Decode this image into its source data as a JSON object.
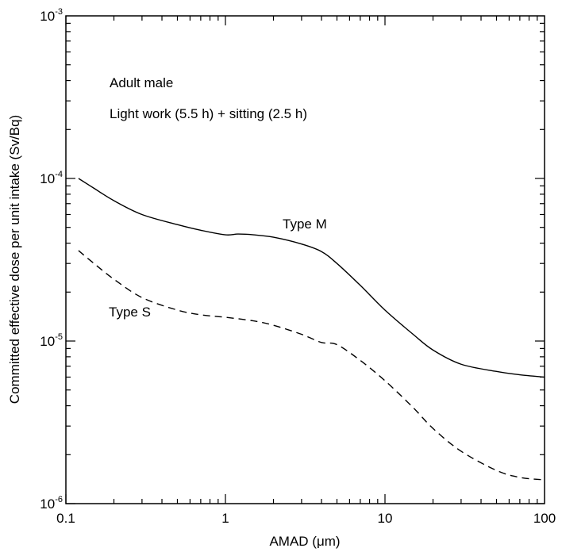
{
  "chart_data": {
    "type": "line",
    "xlabel": "AMAD (μm)",
    "ylabel": "Committed effective dose per unit intake (Sv/Bq)",
    "x_scale": "log",
    "y_scale": "log",
    "xlim": [
      0.1,
      100
    ],
    "ylim": [
      1e-06,
      0.001
    ],
    "x_tick_labels": [
      "0.1",
      "1",
      "10",
      "100"
    ],
    "y_tick_labels": [
      {
        "value": 0.001,
        "base": "10",
        "exp": "-3"
      },
      {
        "value": 0.0001,
        "base": "10",
        "exp": "-4"
      },
      {
        "value": 1e-05,
        "base": "10",
        "exp": "-5"
      },
      {
        "value": 1e-06,
        "base": "10",
        "exp": "-6"
      }
    ],
    "grid": false,
    "annotations": [
      "Adult male",
      "Light work (5.5 h) + sitting (2.5 h)"
    ],
    "series": [
      {
        "name": "Type M",
        "style": "solid",
        "x": [
          0.12,
          0.15,
          0.2,
          0.3,
          0.5,
          0.7,
          1.0,
          1.2,
          1.5,
          2.0,
          3.0,
          4.0,
          5.0,
          7.0,
          10.0,
          15.0,
          20.0,
          30.0,
          50.0,
          70.0,
          100.0
        ],
        "y": [
          0.0001,
          8.7e-05,
          7.3e-05,
          6e-05,
          5.2e-05,
          4.8e-05,
          4.5e-05,
          4.55e-05,
          4.5e-05,
          4.35e-05,
          3.95e-05,
          3.55e-05,
          3e-05,
          2.2e-05,
          1.55e-05,
          1.1e-05,
          8.8e-06,
          7.2e-06,
          6.5e-06,
          6.2e-06,
          6e-06
        ]
      },
      {
        "name": "Type S",
        "style": "dashed",
        "x": [
          0.12,
          0.15,
          0.2,
          0.3,
          0.5,
          0.7,
          1.0,
          1.5,
          2.0,
          3.0,
          4.0,
          5.0,
          7.0,
          10.0,
          15.0,
          20.0,
          30.0,
          50.0,
          70.0,
          100.0
        ],
        "y": [
          3.6e-05,
          3e-05,
          2.4e-05,
          1.85e-05,
          1.55e-05,
          1.45e-05,
          1.4e-05,
          1.33e-05,
          1.25e-05,
          1.1e-05,
          9.8e-06,
          9.5e-06,
          7.6e-06,
          5.7e-06,
          3.9e-06,
          2.9e-06,
          2.1e-06,
          1.6e-06,
          1.45e-06,
          1.4e-06
        ]
      }
    ]
  }
}
